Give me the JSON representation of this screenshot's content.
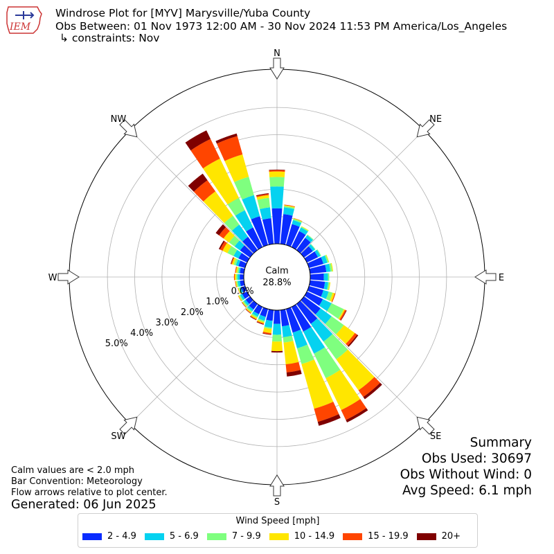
{
  "header": {
    "logo_text": "IEM",
    "title_lines": [
      "Windrose Plot for [MYV] Marysville/Yuba County",
      "Obs Between: 01 Nov 1973 12:00 AM - 30 Nov 2024 11:53 PM America/Los_Angeles",
      "↳ constraints: Nov"
    ]
  },
  "notes": {
    "lines": [
      "Calm values are < 2.0 mph",
      "Bar Convention: Meteorology",
      "Flow arrows relative to plot center."
    ],
    "generated": "Generated: 06 Jun 2025"
  },
  "summary": {
    "lines": [
      "Summary",
      "Obs Used: 30697",
      "Obs Without Wind: 0",
      "Avg Speed: 6.1 mph"
    ]
  },
  "legend": {
    "title": "Wind Speed [mph]",
    "items": [
      {
        "label": "2 - 4.9",
        "color": "#0a2cff"
      },
      {
        "label": "5 - 6.9",
        "color": "#05d2f0"
      },
      {
        "label": "7 - 9.9",
        "color": "#7fff7f"
      },
      {
        "label": "10 - 14.9",
        "color": "#ffe600"
      },
      {
        "label": "15 - 19.9",
        "color": "#ff4500"
      },
      {
        "label": "20+",
        "color": "#7f0000"
      }
    ]
  },
  "chart_data": {
    "type": "windrose",
    "title": "Windrose Plot for [MYV] Marysville/Yuba County",
    "calm_label": "Calm",
    "calm_value": "28.8%",
    "radial_ticks": [
      "0.0%",
      "1.0%",
      "2.0%",
      "3.0%",
      "4.0%",
      "5.0%"
    ],
    "radial_tick_values": [
      0,
      1,
      2,
      3,
      4,
      5
    ],
    "radial_max": 6.4,
    "directions": [
      "N",
      "NE",
      "E",
      "SE",
      "S",
      "SW",
      "W",
      "NW"
    ],
    "speed_bins": [
      "2 - 4.9",
      "5 - 6.9",
      "7 - 9.9",
      "10 - 14.9",
      "15 - 19.9",
      "20+"
    ],
    "colors": [
      "#0a2cff",
      "#05d2f0",
      "#7fff7f",
      "#ffe600",
      "#ff4500",
      "#7f0000"
    ],
    "bar_convention": "Meteorology",
    "bars": [
      {
        "dir": 0,
        "values": [
          1.3,
          0.8,
          0.35,
          0.2,
          0.05,
          0.02
        ]
      },
      {
        "dir": 10,
        "values": [
          1.1,
          0.25,
          0.05,
          0.03,
          0.02,
          0.0
        ]
      },
      {
        "dir": 20,
        "values": [
          0.8,
          0.15,
          0.05,
          0.02,
          0.01,
          0.0
        ]
      },
      {
        "dir": 30,
        "values": [
          0.65,
          0.15,
          0.03,
          0.02,
          0.0,
          0.0
        ]
      },
      {
        "dir": 40,
        "values": [
          0.55,
          0.12,
          0.03,
          0.0,
          0.0,
          0.0
        ]
      },
      {
        "dir": 50,
        "values": [
          0.4,
          0.1,
          0.02,
          0.0,
          0.0,
          0.0
        ]
      },
      {
        "dir": 60,
        "values": [
          0.45,
          0.1,
          0.03,
          0.0,
          0.0,
          0.0
        ]
      },
      {
        "dir": 70,
        "values": [
          0.55,
          0.15,
          0.05,
          0.02,
          0.0,
          0.0
        ]
      },
      {
        "dir": 80,
        "values": [
          0.6,
          0.15,
          0.07,
          0.03,
          0.0,
          0.0
        ]
      },
      {
        "dir": 90,
        "values": [
          0.5,
          0.15,
          0.05,
          0.0,
          0.0,
          0.0
        ]
      },
      {
        "dir": 100,
        "values": [
          0.55,
          0.12,
          0.05,
          0.03,
          0.0,
          0.0
        ]
      },
      {
        "dir": 110,
        "values": [
          0.55,
          0.2,
          0.15,
          0.08,
          0.03,
          0.0
        ]
      },
      {
        "dir": 120,
        "values": [
          0.65,
          0.35,
          0.5,
          0.05,
          0.05,
          0.02
        ]
      },
      {
        "dir": 130,
        "values": [
          0.75,
          0.5,
          0.55,
          0.5,
          0.1,
          0.05
        ]
      },
      {
        "dir": 140,
        "values": [
          0.9,
          0.8,
          0.8,
          1.4,
          0.3,
          0.1
        ]
      },
      {
        "dir": 150,
        "values": [
          1.0,
          0.9,
          1.0,
          1.3,
          0.4,
          0.1
        ]
      },
      {
        "dir": 160,
        "values": [
          0.9,
          0.6,
          0.6,
          1.7,
          0.5,
          0.15
        ]
      },
      {
        "dir": 170,
        "values": [
          0.6,
          0.4,
          0.2,
          0.8,
          0.3,
          0.15
        ]
      },
      {
        "dir": 180,
        "values": [
          0.5,
          0.4,
          0.25,
          0.35,
          0.0,
          0.05
        ]
      },
      {
        "dir": 190,
        "values": [
          0.4,
          0.25,
          0.05,
          0.15,
          0.05,
          0.02
        ]
      },
      {
        "dir": 200,
        "values": [
          0.3,
          0.15,
          0.05,
          0.05,
          0.03,
          0.02
        ]
      },
      {
        "dir": 210,
        "values": [
          0.3,
          0.1,
          0.05,
          0.05,
          0.02,
          0.02
        ]
      },
      {
        "dir": 220,
        "values": [
          0.25,
          0.08,
          0.05,
          0.03,
          0.02,
          0.01
        ]
      },
      {
        "dir": 230,
        "values": [
          0.2,
          0.08,
          0.05,
          0.03,
          0.01,
          0.01
        ]
      },
      {
        "dir": 240,
        "values": [
          0.2,
          0.08,
          0.05,
          0.03,
          0.01,
          0.0
        ]
      },
      {
        "dir": 250,
        "values": [
          0.15,
          0.05,
          0.05,
          0.02,
          0.01,
          0.0
        ]
      },
      {
        "dir": 260,
        "values": [
          0.15,
          0.08,
          0.05,
          0.03,
          0.02,
          0.0
        ]
      },
      {
        "dir": 270,
        "values": [
          0.15,
          0.08,
          0.05,
          0.05,
          0.03,
          0.0
        ]
      },
      {
        "dir": 280,
        "values": [
          0.15,
          0.05,
          0.05,
          0.05,
          0.03,
          0.0
        ]
      },
      {
        "dir": 290,
        "values": [
          0.25,
          0.1,
          0.08,
          0.07,
          0.03,
          0.02
        ]
      },
      {
        "dir": 300,
        "values": [
          0.35,
          0.2,
          0.25,
          0.2,
          0.1,
          0.05
        ]
      },
      {
        "dir": 310,
        "values": [
          0.45,
          0.25,
          0.25,
          0.25,
          0.2,
          0.15
        ]
      },
      {
        "dir": 320,
        "values": [
          0.6,
          0.55,
          0.4,
          1.1,
          0.5,
          0.3
        ]
      },
      {
        "dir": 330,
        "values": [
          0.8,
          0.7,
          0.5,
          1.6,
          0.8,
          0.35
        ]
      },
      {
        "dir": 340,
        "values": [
          1.1,
          0.8,
          0.7,
          0.85,
          0.7,
          0.1
        ]
      },
      {
        "dir": 350,
        "values": [
          0.95,
          0.4,
          0.35,
          0.1,
          0.04,
          0.03
        ]
      }
    ]
  }
}
